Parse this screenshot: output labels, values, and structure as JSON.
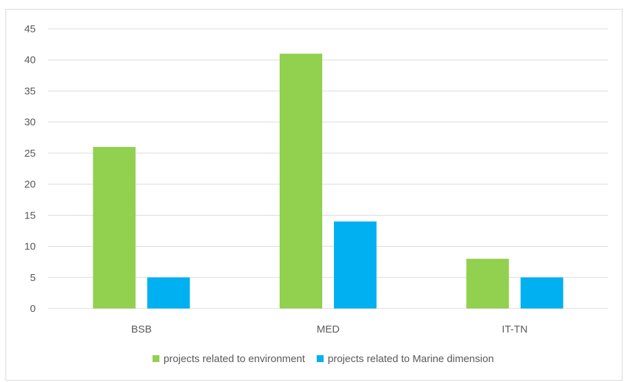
{
  "chart_data": {
    "type": "bar",
    "title": "",
    "xlabel": "",
    "ylabel": "",
    "categories": [
      "BSB",
      "MED",
      "IT-TN"
    ],
    "series": [
      {
        "name": "projects related to environment",
        "values": [
          26,
          41,
          8
        ],
        "color": "#92d050"
      },
      {
        "name": "projects related to Marine dimension",
        "values": [
          5,
          14,
          5
        ],
        "color": "#00b0f0"
      }
    ],
    "ylim": [
      0,
      45
    ],
    "yticks": [
      0,
      5,
      10,
      15,
      20,
      25,
      30,
      35,
      40,
      45
    ],
    "grid": true,
    "legend": "bottom",
    "grid_color": "#d9d9d9"
  }
}
